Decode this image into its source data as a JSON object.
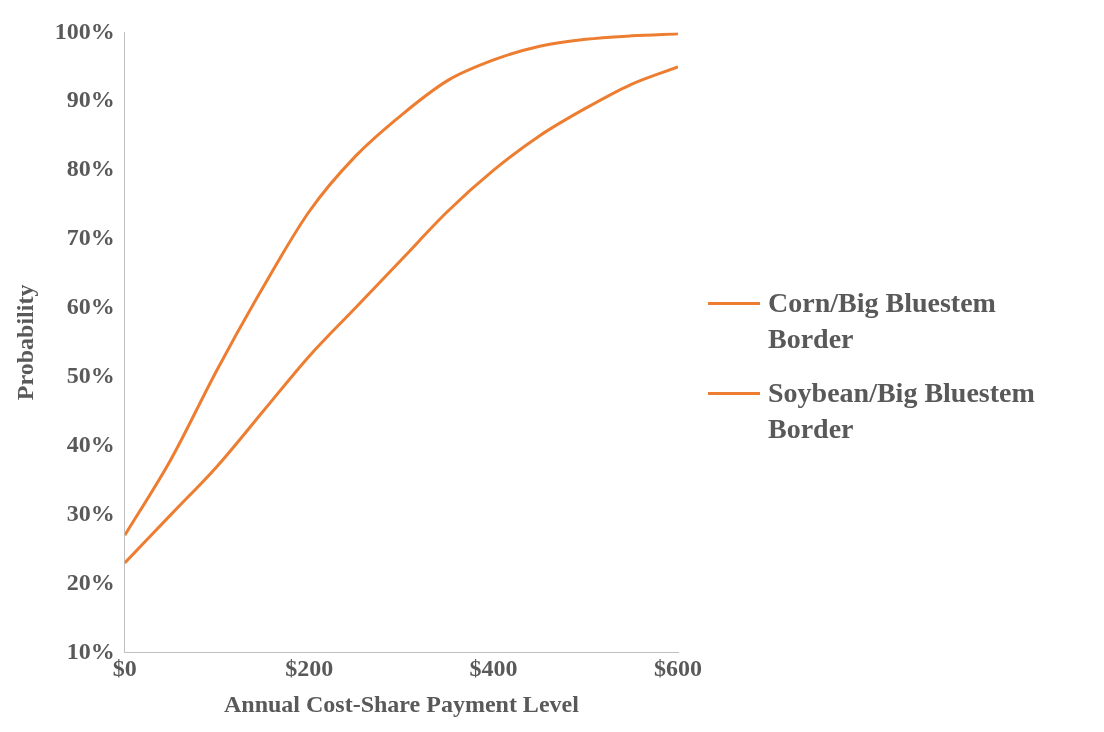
{
  "chart_data": {
    "type": "line",
    "xlabel": "Annual Cost-Share Payment Level",
    "ylabel": "Probability",
    "x": [
      0,
      50,
      100,
      150,
      200,
      250,
      300,
      350,
      400,
      450,
      500,
      550,
      600
    ],
    "series": [
      {
        "name": "Corn/Big Bluestem Border",
        "color": "#ed7d31",
        "values": [
          27,
          38,
          51,
          63,
          74,
          82,
          88,
          93,
          96,
          98,
          99,
          99.5,
          99.8
        ]
      },
      {
        "name": "Soybean/Big Bluestem Border",
        "color": "#ed7d31",
        "values": [
          23,
          30,
          37,
          45,
          53,
          60,
          67,
          74,
          80,
          85,
          89,
          92.5,
          95
        ]
      }
    ],
    "xlim": [
      0,
      600
    ],
    "xticks": [
      {
        "value": 0,
        "label": "$0"
      },
      {
        "value": 200,
        "label": "$200"
      },
      {
        "value": 400,
        "label": "$400"
      },
      {
        "value": 600,
        "label": "$600"
      }
    ],
    "ylim": [
      10,
      100
    ],
    "yticks": [
      {
        "value": 10,
        "label": "10%"
      },
      {
        "value": 20,
        "label": "20%"
      },
      {
        "value": 30,
        "label": "30%"
      },
      {
        "value": 40,
        "label": "40%"
      },
      {
        "value": 50,
        "label": "50%"
      },
      {
        "value": 60,
        "label": "60%"
      },
      {
        "value": 70,
        "label": "70%"
      },
      {
        "value": 80,
        "label": "80%"
      },
      {
        "value": 90,
        "label": "90%"
      },
      {
        "value": 100,
        "label": "100%"
      }
    ],
    "grid": false,
    "legend": "right",
    "marker": "none",
    "line_style": "solid"
  }
}
